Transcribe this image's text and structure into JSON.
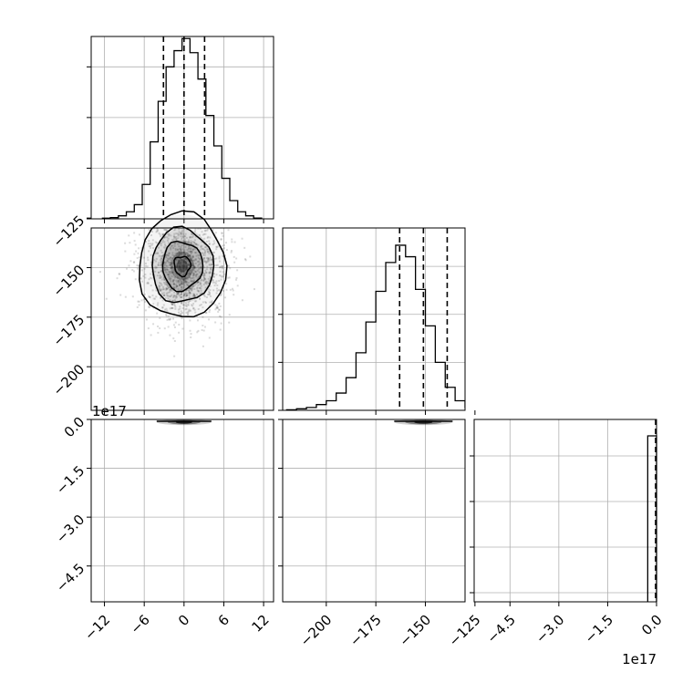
{
  "chart_data": {
    "type": "corner",
    "grid": true,
    "colors": {
      "line": "#000000",
      "grid": "#b0b0b0",
      "density": "#000000",
      "frame": "#000000"
    },
    "quantiles_style": "dashed",
    "offset_labels": {
      "p3_y": "1e17",
      "p3_x": "1e17"
    },
    "hist_p1": {
      "xlim": [
        -14,
        13.5
      ],
      "x_ticks": [
        -12,
        -6,
        0,
        6,
        12
      ],
      "x_tick_labels": [
        "−12",
        "−6",
        "0",
        "6",
        "12"
      ],
      "y_ticks": [
        0,
        0.25,
        0.5,
        0.75
      ],
      "ylim": [
        0,
        0.9
      ],
      "bin_edges": [
        -12.3,
        -11.1,
        -9.9,
        -8.7,
        -7.5,
        -6.3,
        -5.1,
        -3.9,
        -2.7,
        -1.5,
        -0.3,
        0.9,
        2.1,
        3.3,
        4.5,
        5.7,
        6.9,
        8.1,
        9.3,
        10.5,
        11.7
      ],
      "values": [
        0.003,
        0.006,
        0.015,
        0.035,
        0.07,
        0.17,
        0.38,
        0.58,
        0.75,
        0.83,
        0.89,
        0.82,
        0.69,
        0.51,
        0.36,
        0.2,
        0.09,
        0.035,
        0.015,
        0.004
      ],
      "quantiles": [
        -3.1,
        0.0,
        3.1
      ]
    },
    "hist_p2": {
      "xlim": [
        -222,
        -130
      ],
      "x_ticks": [
        -200,
        -175,
        -150,
        -125
      ],
      "x_tick_labels": [
        "−200",
        "−175",
        "−150",
        "−125"
      ],
      "y_ticks": [
        0,
        0.25,
        0.5,
        0.75
      ],
      "ylim": [
        0,
        0.95
      ],
      "bin_edges": [
        -200,
        -195,
        -190,
        -185,
        -180,
        -175,
        -170,
        -165,
        -160,
        -155,
        -150,
        -145,
        -140,
        -135,
        -130,
        -125,
        -120,
        -115,
        -110,
        -105,
        -100
      ],
      "values": [
        0.003,
        0.008,
        0.015,
        0.03,
        0.05,
        0.09,
        0.17,
        0.3,
        0.46,
        0.62,
        0.77,
        0.86,
        0.8,
        0.63,
        0.44,
        0.25,
        0.12,
        0.05,
        0.015,
        0.005
      ],
      "quantiles": [
        -163,
        -151,
        -139
      ]
    },
    "hist_p3": {
      "xlim": [
        -5.6,
        0.0
      ],
      "x_ticks": [
        -4.5,
        -3.0,
        -1.5,
        0.0
      ],
      "x_tick_labels": [
        "−4.5",
        "−3.0",
        "−1.5",
        "0.0"
      ],
      "y_ticks": [
        0.05,
        0.3,
        0.55,
        0.8
      ],
      "ylim": [
        0,
        1.0
      ],
      "spike_left": -0.27,
      "spike_height": 0.91,
      "quantiles": [
        -0.02,
        0.0
      ]
    },
    "scatter_p2_vs_p1": {
      "xlim": [
        -14,
        13.5
      ],
      "ylim": [
        -222,
        -130
      ],
      "y_ticks": [
        -125,
        -150,
        -175,
        -200
      ],
      "y_tick_labels": [
        "−125",
        "−150",
        "−175",
        "−200"
      ],
      "center": [
        0,
        -150
      ],
      "sigma": [
        3.2,
        13
      ],
      "contour_levels": [
        0.1,
        0.3,
        0.5,
        0.75
      ]
    },
    "scatter_p3_vs_p1": {
      "xlim": [
        -14,
        13.5
      ],
      "ylim": [
        -5.6,
        0.0
      ],
      "y_ticks": [
        0.0,
        -1.5,
        -3.0,
        -4.5
      ],
      "y_tick_labels": [
        "0.0",
        "−1.5",
        "−3.0",
        "−4.5"
      ]
    },
    "scatter_p3_vs_p2": {
      "xlim": [
        -222,
        -130
      ],
      "ylim": [
        -5.6,
        0.0
      ]
    }
  }
}
